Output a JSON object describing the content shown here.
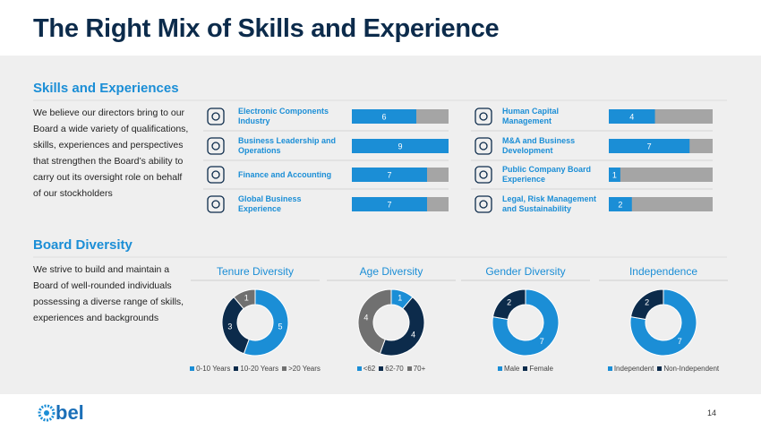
{
  "title": "The Right Mix of Skills and Experience",
  "skills": {
    "heading": "Skills and Experiences",
    "text": "We believe our directors bring to our Board a wide variety of qualifications, skills, experiences and perspectives that strengthen the Board’s ability to carry out its oversight role on behalf of our stockholders"
  },
  "diversity": {
    "heading": "Board Diversity",
    "text": "We strive to build and maintain a Board of well-rounded individuals possessing a diverse range of skills, experiences and backgrounds"
  },
  "footer": {
    "logo": "bel",
    "page": "14"
  },
  "chart_data": [
    {
      "type": "bar",
      "orientation": "horizontal",
      "categories": [
        "Electronic Components Industry",
        "Business Leadership and Operations",
        "Finance and Accounting",
        "Global Business Experience"
      ],
      "values": [
        6,
        9,
        7,
        7
      ],
      "xlim": [
        0,
        9
      ],
      "color": "#1b8ed6",
      "track_color": "#a5a5a5"
    },
    {
      "type": "bar",
      "orientation": "horizontal",
      "categories": [
        "Human Capital Management",
        "M&A and Business Development",
        "Public Company Board Experience",
        "Legal, Risk Management and Sustainability"
      ],
      "values": [
        4,
        7,
        1,
        2
      ],
      "xlim": [
        0,
        9
      ],
      "color": "#1b8ed6",
      "track_color": "#a5a5a5"
    },
    {
      "type": "pie",
      "donut": true,
      "title": "Tenure Diversity",
      "categories": [
        "0-10 Years",
        "10-20 Years",
        ">20 Years"
      ],
      "values": [
        5,
        3,
        1
      ],
      "colors": [
        "#1b8ed6",
        "#0c2b4b",
        "#707070"
      ]
    },
    {
      "type": "pie",
      "donut": true,
      "title": "Age Diversity",
      "categories": [
        "<62",
        "62-70",
        "70+"
      ],
      "values": [
        1,
        4,
        4
      ],
      "colors": [
        "#1b8ed6",
        "#0c2b4b",
        "#707070"
      ]
    },
    {
      "type": "pie",
      "donut": true,
      "title": "Gender Diversity",
      "categories": [
        "Male",
        "Female"
      ],
      "values": [
        7,
        2
      ],
      "colors": [
        "#1b8ed6",
        "#0c2b4b"
      ]
    },
    {
      "type": "pie",
      "donut": true,
      "title": "Independence",
      "categories": [
        "Independent",
        "Non-Independent"
      ],
      "values": [
        7,
        2
      ],
      "colors": [
        "#1b8ed6",
        "#0c2b4b"
      ]
    }
  ]
}
